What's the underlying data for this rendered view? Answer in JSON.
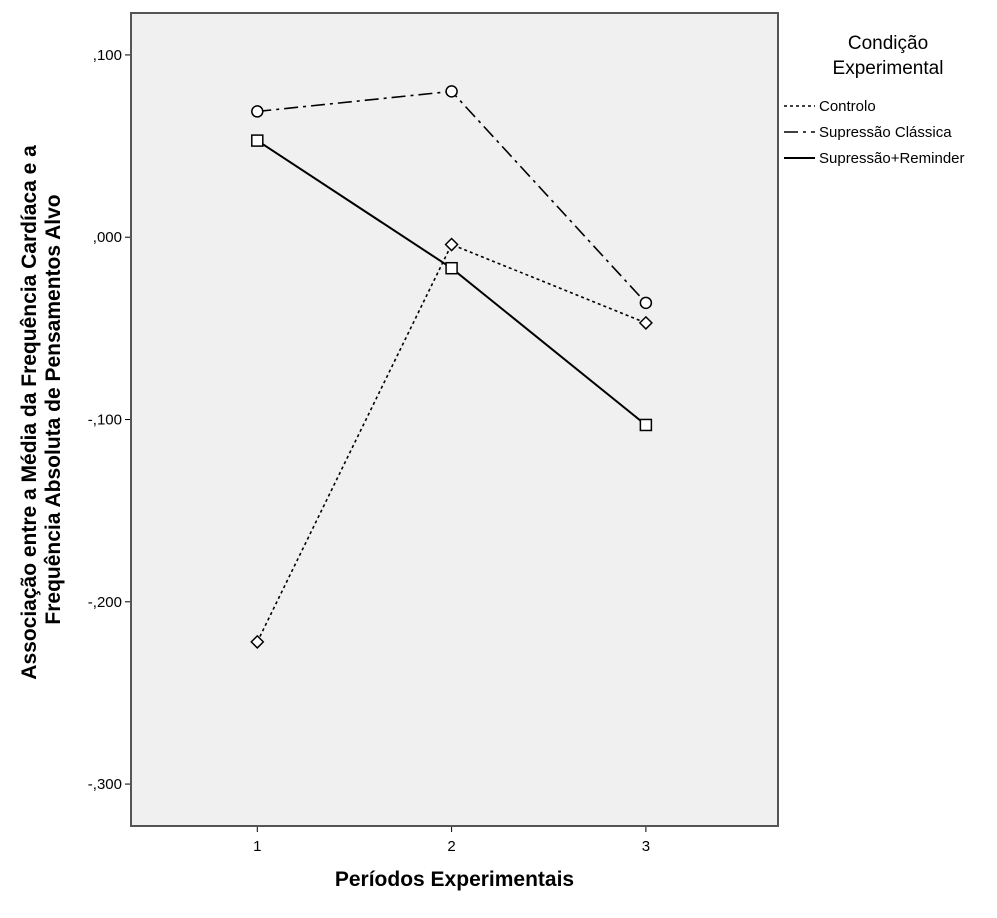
{
  "chart_data": {
    "type": "line",
    "xlabel": "Períodos Experimentais",
    "ylabel": [
      "Associação entre a Média da Frequência Cardíaca e a",
      "Frequência Absoluta de Pensamentos Alvo"
    ],
    "x_categories": [
      "1",
      "2",
      "3"
    ],
    "yticks": [
      {
        "value": 0.1,
        "label": ",100"
      },
      {
        "value": 0.0,
        "label": ",000"
      },
      {
        "value": -0.1,
        "label": "-,100"
      },
      {
        "value": -0.2,
        "label": "-,200"
      },
      {
        "value": -0.3,
        "label": "-,300"
      }
    ],
    "ylim": [
      -0.323,
      0.123
    ],
    "xlim": [
      0.35,
      3.68
    ],
    "grid": false,
    "background": "#f0f0f0",
    "legend": {
      "title": [
        "Condição",
        "Experimental"
      ],
      "placement": "right"
    },
    "series": [
      {
        "name": "Controlo",
        "values": [
          -0.222,
          -0.004,
          -0.047
        ],
        "marker": "diamond",
        "dash": "dotted",
        "color": "#000000"
      },
      {
        "name": "Supressão Clássica",
        "values": [
          0.069,
          0.08,
          -0.036
        ],
        "marker": "circle",
        "dash": "dashdot",
        "color": "#000000"
      },
      {
        "name": "Supressão+Reminder",
        "values": [
          0.053,
          -0.017,
          -0.103
        ],
        "marker": "square",
        "dash": "solid",
        "color": "#000000"
      }
    ]
  }
}
